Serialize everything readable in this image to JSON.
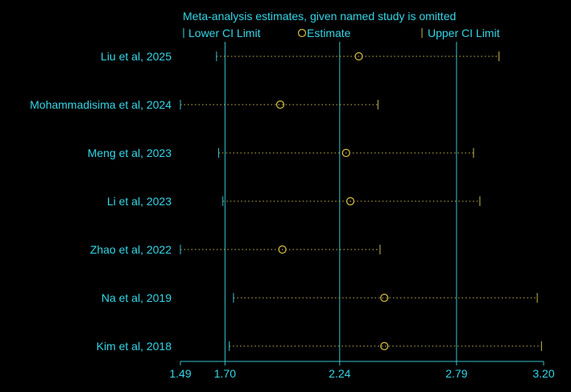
{
  "colors": {
    "background": "#000000",
    "text": "#33d6e6",
    "axis": "#33c2cc",
    "estimate": "#d9c040",
    "ci_line": "#c8b850"
  },
  "legend": {
    "title": "Meta-analysis estimates, given named study is omitted",
    "lower": "Lower CI Limit",
    "estimate": "Estimate",
    "upper": "Upper CI Limit"
  },
  "chart_data": {
    "type": "scatter",
    "title": "Meta-analysis estimates, given named study is omitted",
    "xlim": [
      1.49,
      3.2
    ],
    "ticks": [
      {
        "value": 1.49,
        "label": "1.49"
      },
      {
        "value": 1.7,
        "label": "1.70"
      },
      {
        "value": 2.24,
        "label": "2.24"
      },
      {
        "value": 2.79,
        "label": "2.79"
      },
      {
        "value": 3.2,
        "label": "3.20"
      }
    ],
    "reference_lines": [
      1.7,
      2.24,
      2.79
    ],
    "studies": [
      {
        "name": "Liu et al, 2025",
        "lower": 1.66,
        "estimate": 2.33,
        "upper": 2.99
      },
      {
        "name": "Mohammadisima et al, 2024",
        "lower": 1.49,
        "estimate": 1.96,
        "upper": 2.42
      },
      {
        "name": "Meng et al, 2023",
        "lower": 1.67,
        "estimate": 2.27,
        "upper": 2.87
      },
      {
        "name": "Li et al, 2023",
        "lower": 1.69,
        "estimate": 2.29,
        "upper": 2.9
      },
      {
        "name": "Zhao et al, 2022",
        "lower": 1.49,
        "estimate": 1.97,
        "upper": 2.43
      },
      {
        "name": "Na et al, 2019",
        "lower": 1.74,
        "estimate": 2.45,
        "upper": 3.17
      },
      {
        "name": "Kim et al, 2018",
        "lower": 1.72,
        "estimate": 2.45,
        "upper": 3.19
      }
    ]
  }
}
